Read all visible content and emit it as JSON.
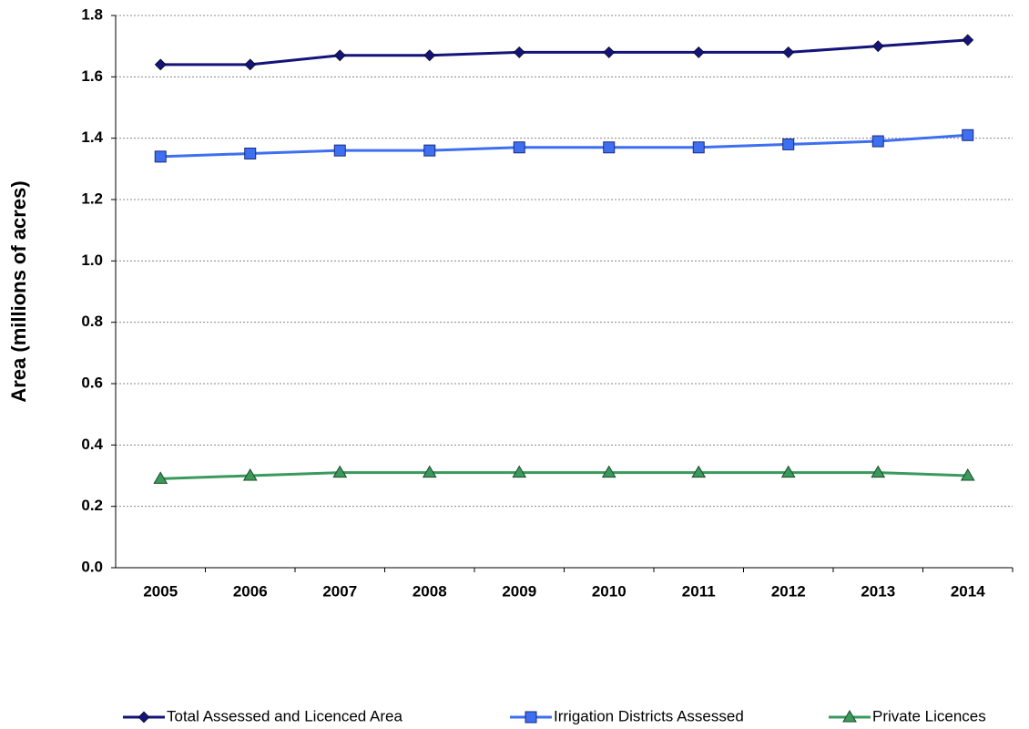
{
  "chart_data": {
    "type": "line",
    "y_label": "Area (millions of acres)",
    "categories": [
      "2005",
      "2006",
      "2007",
      "2008",
      "2009",
      "2010",
      "2011",
      "2012",
      "2013",
      "2014"
    ],
    "series": [
      {
        "name": "Total Assessed and Licenced Area",
        "color": "#14147a",
        "marker": "diamond",
        "values": [
          1.64,
          1.64,
          1.67,
          1.67,
          1.68,
          1.68,
          1.68,
          1.68,
          1.7,
          1.72
        ]
      },
      {
        "name": "Irrigation Districts Assessed",
        "color": "#3d6ff0",
        "marker": "square",
        "values": [
          1.34,
          1.35,
          1.36,
          1.36,
          1.37,
          1.37,
          1.37,
          1.38,
          1.39,
          1.41
        ]
      },
      {
        "name": "Private Licences",
        "color": "#3a9a5c",
        "marker": "triangle",
        "values": [
          0.29,
          0.3,
          0.31,
          0.31,
          0.31,
          0.31,
          0.31,
          0.31,
          0.31,
          0.3
        ]
      }
    ],
    "ylim": [
      0,
      1.8
    ],
    "yticks": [
      {
        "value": 0,
        "label": "0.0"
      },
      0.2,
      0.4,
      0.6,
      0.8,
      {
        "value": 1,
        "label": "1.0"
      },
      1.2,
      1.4,
      1.6,
      1.8
    ],
    "grid": true,
    "legend": "bottom"
  }
}
